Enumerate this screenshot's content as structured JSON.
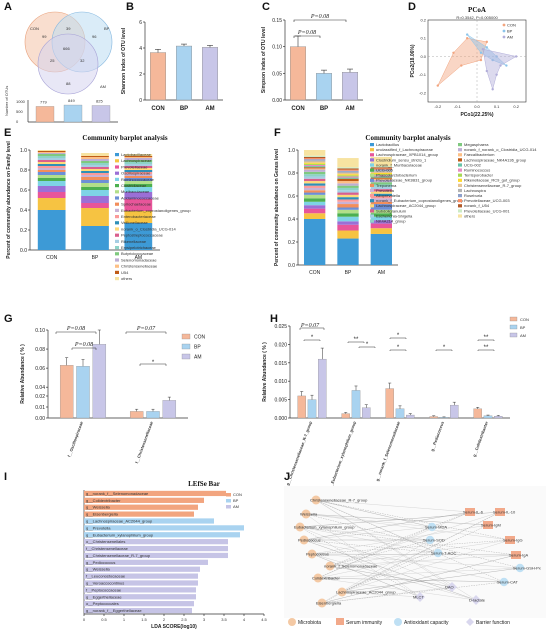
{
  "panels": {
    "A": {
      "label": "A",
      "venn": {
        "sets": [
          "CON",
          "BP",
          "AM"
        ],
        "regions": {
          "con_only": "99",
          "bp_only": "96",
          "am_only": "88",
          "con_bp": "39",
          "con_am": "25",
          "bp_am": "32",
          "all": "666"
        }
      },
      "bars": {
        "values": [
          "779",
          "849",
          "825"
        ],
        "axis_label": "Number of OTUs",
        "ticks": [
          "0",
          "500",
          "1000"
        ]
      }
    },
    "B": {
      "label": "B"
    },
    "C": {
      "label": "C"
    },
    "D": {
      "label": "D"
    },
    "E": {
      "label": "E"
    },
    "F": {
      "label": "F"
    },
    "G": {
      "label": "G"
    },
    "H": {
      "label": "H"
    },
    "I": {
      "label": "I"
    },
    "J": {
      "label": "J",
      "left_nodes": [
        "Christensenellaceae_R-7_group",
        "Weissella",
        "Eubacterium_xylanophilum_group",
        "Pediococcus",
        "Peptococcus",
        "norank_f_Selenomonadaceae",
        "Colidextribacter",
        "Lachnospiraceae_AC2044_group",
        "Eisenbergiella"
      ],
      "right_nodes": [
        "Serum-IL-6",
        "Serum-IL-10",
        "Serum-IgM",
        "Serum-MDA",
        "Serum-SOD",
        "Serum-IgG",
        "Serum-T-AOC",
        "Serum-IgA",
        "Serum-GSH-Px",
        "Serum-CAT",
        "DAO",
        "MLCT",
        "D-lactate"
      ],
      "legend": [
        "Microbiota",
        "Serum immunity",
        "Antioxidant capacity",
        "Barrier function"
      ]
    }
  },
  "colors": {
    "con": "#f5b89a",
    "bp": "#a9d3f0",
    "am": "#c8c6e8",
    "bar_stroke": "#888888"
  },
  "chart_data": [
    {
      "id": "B",
      "type": "bar",
      "title": "",
      "xlabel": "",
      "ylabel": "Shannon index of OTU level",
      "categories": [
        "CON",
        "BP",
        "AM"
      ],
      "values": [
        3.65,
        4.15,
        4.05
      ],
      "errors": [
        0.25,
        0.15,
        0.15
      ],
      "ylim": [
        0,
        6
      ],
      "yticks": [
        "0",
        "2",
        "4",
        "6"
      ]
    },
    {
      "id": "C",
      "type": "bar",
      "title": "",
      "xlabel": "",
      "ylabel": "Simpson index of OTU level",
      "categories": [
        "CON",
        "BP",
        "AM"
      ],
      "values": [
        0.1,
        0.05,
        0.052
      ],
      "errors": [
        0.02,
        0.006,
        0.006
      ],
      "ylim": [
        0,
        0.15
      ],
      "yticks": [
        "0.00",
        "0.05",
        "0.10",
        "0.15"
      ],
      "annotations": [
        "P=0.08",
        "P=0.08"
      ]
    },
    {
      "id": "D",
      "type": "scatter",
      "title": "PCoA",
      "subtitle": "R=0.3542, P=0.005000",
      "xlabel": "PCo1(22.25%)",
      "ylabel": "PCo2(18.06%)",
      "xticks": [
        "-0.2",
        "-0.1",
        "0.0",
        "0.1",
        "0.2"
      ],
      "yticks": [
        "-0.2",
        "-0.1",
        "0.0",
        "0.1",
        "0.2"
      ],
      "xlim": [
        -0.25,
        0.25
      ],
      "ylim": [
        -0.25,
        0.2
      ],
      "series": [
        {
          "name": "CON",
          "points": [
            [
              -0.2,
              -0.16
            ],
            [
              -0.05,
              0.1
            ],
            [
              0.05,
              0.08
            ],
            [
              -0.12,
              0.02
            ],
            [
              -0.08,
              -0.05
            ],
            [
              0.02,
              -0.02
            ]
          ]
        },
        {
          "name": "BP",
          "points": [
            [
              -0.05,
              0.12
            ],
            [
              0.05,
              0.05
            ],
            [
              0.1,
              0.0
            ],
            [
              0.15,
              -0.05
            ],
            [
              0.02,
              0.02
            ],
            [
              0.08,
              -0.02
            ]
          ]
        },
        {
          "name": "AM",
          "points": [
            [
              0.03,
              0.04
            ],
            [
              0.2,
              0.0
            ],
            [
              0.08,
              -0.18
            ],
            [
              0.12,
              -0.05
            ],
            [
              0.05,
              -0.08
            ],
            [
              0.1,
              -0.1
            ]
          ]
        }
      ]
    },
    {
      "id": "E",
      "type": "bar",
      "stacked": true,
      "title": "Community barplot analysis",
      "xlabel": "",
      "ylabel": "Percent of community abundance on Family level",
      "categories": [
        "CON",
        "BP",
        "AM"
      ],
      "ylim": [
        0,
        1
      ],
      "yticks": [
        "0.0",
        "0.2",
        "0.4",
        "0.6",
        "0.8",
        "1.0"
      ],
      "series": [
        {
          "name": "Lactobacillaceae",
          "values": [
            0.4,
            0.24,
            0.27
          ],
          "color": "#3d9ad6"
        },
        {
          "name": "Lachnospiraceae",
          "values": [
            0.12,
            0.18,
            0.12
          ],
          "color": "#f6c342"
        },
        {
          "name": "Prevotellaceae",
          "values": [
            0.06,
            0.05,
            0.12
          ],
          "color": "#e8559a"
        },
        {
          "name": "Oscillospiraceae",
          "values": [
            0.06,
            0.07,
            0.07
          ],
          "color": "#9b6fd6"
        },
        {
          "name": "Ruminococcaceae",
          "values": [
            0.05,
            0.06,
            0.05
          ],
          "color": "#7ed3e6"
        },
        {
          "name": "Clostridiaceae",
          "values": [
            0.03,
            0.03,
            0.03
          ],
          "color": "#4cb050"
        },
        {
          "name": "Muribaculaceae",
          "values": [
            0.03,
            0.04,
            0.03
          ],
          "color": "#b2df8a"
        },
        {
          "name": "Acidaminococcaceae",
          "values": [
            0.03,
            0.03,
            0.03
          ],
          "color": "#6c8fd6"
        },
        {
          "name": "Spirochaetaceae",
          "values": [
            0.02,
            0.03,
            0.02
          ],
          "color": "#f28e5b"
        },
        {
          "name": "Eubacterium_coprostanoligenes_group",
          "values": [
            0.02,
            0.02,
            0.02
          ],
          "color": "#cab2d6"
        },
        {
          "name": "Enterobacteriaceae",
          "values": [
            0.02,
            0.02,
            0.02
          ],
          "color": "#fb9a99"
        },
        {
          "name": "Veillonellaceae",
          "values": [
            0.02,
            0.02,
            0.02
          ],
          "color": "#2f8fb8"
        },
        {
          "name": "norank_o_Clostridia_UCG-014",
          "values": [
            0.02,
            0.02,
            0.02
          ],
          "color": "#ffd97a"
        },
        {
          "name": "Peptostreptococcaceae",
          "values": [
            0.02,
            0.02,
            0.02
          ],
          "color": "#d95f8d"
        },
        {
          "name": "Rikenellaceae",
          "values": [
            0.02,
            0.02,
            0.02
          ],
          "color": "#a6cee3"
        },
        {
          "name": "Erysipelotrichaceae",
          "values": [
            0.02,
            0.02,
            0.02
          ],
          "color": "#8dd3c7"
        },
        {
          "name": "Butyricicoccaceae",
          "values": [
            0.02,
            0.02,
            0.02
          ],
          "color": "#7fc97f"
        },
        {
          "name": "Selenomonadaceae",
          "values": [
            0.01,
            0.02,
            0.02
          ],
          "color": "#beaed4"
        },
        {
          "name": "Christensenellaceae",
          "values": [
            0.01,
            0.02,
            0.01
          ],
          "color": "#fdc086"
        },
        {
          "name": "U54",
          "values": [
            0.01,
            0.01,
            0.01
          ],
          "color": "#bf5b17"
        },
        {
          "name": "others",
          "values": [
            0.03,
            0.03,
            0.02
          ],
          "color": "#f7e3a1"
        }
      ]
    },
    {
      "id": "F",
      "type": "bar",
      "stacked": true,
      "title": "Community barplot analysis",
      "xlabel": "",
      "ylabel": "Percent of community abundance on Genus level",
      "categories": [
        "CON",
        "BP",
        "AM"
      ],
      "ylim": [
        0,
        1
      ],
      "yticks": [
        "0.0",
        "0.2",
        "0.4",
        "0.6",
        "0.8",
        "1.0"
      ],
      "series": [
        {
          "name": "Lactobacillus",
          "values": [
            0.4,
            0.23,
            0.27
          ],
          "color": "#3d9ad6"
        },
        {
          "name": "unclassified_f_Lachnospiraceae",
          "values": [
            0.05,
            0.07,
            0.05
          ],
          "color": "#f6c342"
        },
        {
          "name": "Lachnospiraceae_XPB1014_group",
          "values": [
            0.04,
            0.05,
            0.04
          ],
          "color": "#e8559a"
        },
        {
          "name": "Clostridium_sensu_stricto_1",
          "values": [
            0.03,
            0.03,
            0.03
          ],
          "color": "#9b6fd6"
        },
        {
          "name": "norank_f_Muribaculaceae",
          "values": [
            0.03,
            0.04,
            0.03
          ],
          "color": "#7ed3e6"
        },
        {
          "name": "UCG-005",
          "values": [
            0.03,
            0.03,
            0.03
          ],
          "color": "#4cb050"
        },
        {
          "name": "Phascolarctobacterium",
          "values": [
            0.03,
            0.03,
            0.03
          ],
          "color": "#b2df8a"
        },
        {
          "name": "Prevotellaceae_NK3B31_group",
          "values": [
            0.02,
            0.02,
            0.05
          ],
          "color": "#6c8fd6"
        },
        {
          "name": "Treponema",
          "values": [
            0.02,
            0.03,
            0.02
          ],
          "color": "#f28e5b"
        },
        {
          "name": "Prevotella",
          "values": [
            0.02,
            0.02,
            0.03
          ],
          "color": "#cab2d6"
        },
        {
          "name": "Alloprevotella",
          "values": [
            0.02,
            0.02,
            0.02
          ],
          "color": "#fb9a99"
        },
        {
          "name": "norank_f_Eubacterium_coprostanoligenes_group",
          "values": [
            0.02,
            0.02,
            0.02
          ],
          "color": "#2f8fb8"
        },
        {
          "name": "Lachnospiraceae_AC2044_group",
          "values": [
            0.02,
            0.02,
            0.02
          ],
          "color": "#ffd97a"
        },
        {
          "name": "Subdoligranulum",
          "values": [
            0.02,
            0.02,
            0.02
          ],
          "color": "#d95f8d"
        },
        {
          "name": "Escherichia-Shigella",
          "values": [
            0.02,
            0.02,
            0.02
          ],
          "color": "#a6cee3"
        },
        {
          "name": "NK4A214_group",
          "values": [
            0.02,
            0.02,
            0.02
          ],
          "color": "#8dd3c7"
        },
        {
          "name": "Megasphaera",
          "values": [
            0.02,
            0.02,
            0.02
          ],
          "color": "#7fc97f"
        },
        {
          "name": "norank_f_norank_o_Clostridia_UCG-014",
          "values": [
            0.02,
            0.02,
            0.02
          ],
          "color": "#beaed4"
        },
        {
          "name": "Faecalibacterium",
          "values": [
            0.01,
            0.02,
            0.01
          ],
          "color": "#fdc086"
        },
        {
          "name": "Lachnospiraceae_NK4A136_group",
          "values": [
            0.01,
            0.02,
            0.01
          ],
          "color": "#bf5b17"
        },
        {
          "name": "UCG-002",
          "values": [
            0.01,
            0.01,
            0.01
          ],
          "color": "#66c2a5"
        },
        {
          "name": "Ruminococcus",
          "values": [
            0.01,
            0.01,
            0.01
          ],
          "color": "#e78ac3"
        },
        {
          "name": "Terrisporobacter",
          "values": [
            0.01,
            0.01,
            0.01
          ],
          "color": "#a6d854"
        },
        {
          "name": "Rikenellaceae_RC9_gut_group",
          "values": [
            0.01,
            0.01,
            0.01
          ],
          "color": "#ffd92f"
        },
        {
          "name": "Christensenellaceae_R-7_group",
          "values": [
            0.01,
            0.01,
            0.01
          ],
          "color": "#e5c494"
        },
        {
          "name": "Lachnospira",
          "values": [
            0.01,
            0.01,
            0.01
          ],
          "color": "#b3b3b3"
        },
        {
          "name": "Roseburia",
          "values": [
            0.01,
            0.01,
            0.01
          ],
          "color": "#8da0cb"
        },
        {
          "name": "Prevotellaceae_UCG-003",
          "values": [
            0.01,
            0.01,
            0.01
          ],
          "color": "#fc8d62"
        },
        {
          "name": "norank_f_U54",
          "values": [
            0.01,
            0.01,
            0.01
          ],
          "color": "#b15928"
        },
        {
          "name": "Prevotellaceae_UCG-001",
          "values": [
            0.01,
            0.01,
            0.01
          ],
          "color": "#ccebc5"
        },
        {
          "name": "others",
          "values": [
            0.08,
            0.08,
            0.08
          ],
          "color": "#f7e3a1"
        }
      ]
    },
    {
      "id": "G",
      "type": "bar",
      "title": "",
      "xlabel": "",
      "ylabel": "Relative Abundance ( % )",
      "categories": [
        "f__Oscillospiraceae",
        "f__Christensenellaceae"
      ],
      "series": [
        {
          "name": "CON",
          "values": [
            0.063,
            0.006
          ],
          "errors": [
            0.008,
            0.002
          ]
        },
        {
          "name": "BP",
          "values": [
            0.062,
            0.006
          ],
          "errors": [
            0.007,
            0.002
          ]
        },
        {
          "name": "AM",
          "values": [
            0.085,
            0.016
          ],
          "errors": [
            0.015,
            0.003
          ]
        }
      ],
      "ylim": [
        0,
        0.1
      ],
      "yticks": [
        "0.00",
        "0.01",
        "0.02",
        "0.04",
        "0.06",
        "0.08",
        "0.10"
      ],
      "annotations": [
        "P=0.08",
        "P=0.08",
        "P=0.07",
        "*"
      ]
    },
    {
      "id": "H",
      "type": "bar",
      "title": "",
      "xlabel": "",
      "ylabel": "Relative Abundance ( % )",
      "categories": [
        "g__Christensenellaceae_R-7_group",
        "g__Eubacterium_xylanophilum_group",
        "g__norank_f_Selenomonadaceae",
        "g__Pediococcus",
        "g__Colidextribacter"
      ],
      "series": [
        {
          "name": "CON",
          "values": [
            0.006,
            0.0012,
            0.008,
            0.0004,
            0.0025
          ],
          "errors": [
            0.0012,
            0.0003,
            0.0015,
            0.0002,
            0.0004
          ]
        },
        {
          "name": "BP",
          "values": [
            0.005,
            0.0075,
            0.0025,
            0.0002,
            0.0006
          ],
          "errors": [
            0.0012,
            0.0012,
            0.0008,
            0.0001,
            0.0002
          ]
        },
        {
          "name": "AM",
          "values": [
            0.016,
            0.0028,
            0.0008,
            0.0035,
            0.0005
          ],
          "errors": [
            0.003,
            0.0008,
            0.0004,
            0.0008,
            0.0002
          ]
        }
      ],
      "ylim": [
        0,
        0.025
      ],
      "yticks": [
        "0.000",
        "0.005",
        "0.010",
        "0.015",
        "0.020",
        "0.025"
      ],
      "annotations": [
        "P=0.07",
        "*",
        "**",
        "*",
        "*",
        "*",
        "*",
        "**",
        "**"
      ]
    },
    {
      "id": "I",
      "type": "bar",
      "orientation": "horizontal",
      "title": "LEfSe Bar",
      "xlabel": "LDA SCORE(log10)",
      "ylabel": "",
      "legend": [
        "CON",
        "BP",
        "AM"
      ],
      "xlim": [
        0,
        4.5
      ],
      "xticks": [
        "0",
        "0.5",
        "1",
        "1.5",
        "2",
        "2.5",
        "3",
        "3.5",
        "4",
        "4.5"
      ],
      "categories": [
        "g__norank_f__Selenomonadaceae",
        "g__Colidextribacter",
        "g__Weissella",
        "g__Eisenbergiella",
        "g__Lachnospiraceae_AC2044_group",
        "g__Prevotella",
        "g__Eubacterium_xylanophilum_group",
        "o__Christensenellales",
        "f__Christensenellaceae",
        "g__Christensenellaceae_R-7_group",
        "g__Pediococcus",
        "g__Weissella",
        "f__Leuconostocaceae",
        "g__Veroaccocontinus",
        "f__Peptococcaceae",
        "g__Eggerthellaceae",
        "o__Peptococcales",
        "g__norank_f__Eggerthellaceae"
      ],
      "values": [
        3.55,
        3.0,
        2.85,
        2.75,
        3.25,
        4.0,
        3.9,
        3.6,
        3.6,
        3.6,
        3.1,
        2.9,
        2.85,
        2.85,
        2.8,
        2.8,
        2.75,
        2.7
      ],
      "groups": [
        "CON",
        "CON",
        "CON",
        "CON",
        "BP",
        "BP",
        "BP",
        "AM",
        "AM",
        "AM",
        "AM",
        "AM",
        "AM",
        "AM",
        "AM",
        "AM",
        "AM",
        "AM"
      ]
    }
  ]
}
